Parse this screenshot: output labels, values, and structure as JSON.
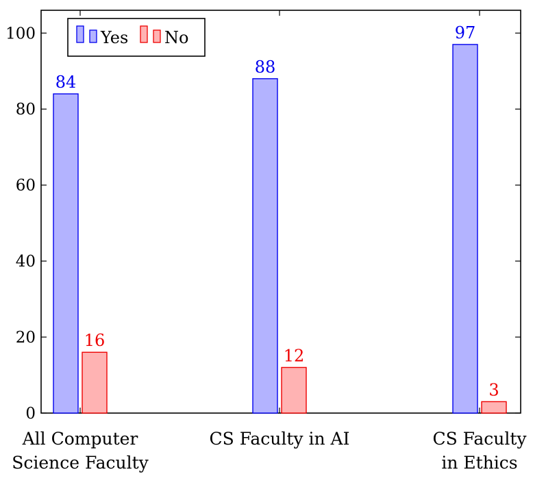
{
  "chart_data": {
    "type": "bar",
    "title": "",
    "xlabel": "",
    "ylabel": "",
    "categories": [
      [
        "All Computer",
        "Science Faculty"
      ],
      [
        "CS Faculty in AI"
      ],
      [
        "CS Faculty",
        "in Ethics"
      ]
    ],
    "series": [
      {
        "name": "Yes",
        "values": [
          84,
          88,
          97
        ],
        "fill": "#b3b3ff",
        "stroke": "#0000ee",
        "label_color": "#0000ee"
      },
      {
        "name": "No",
        "values": [
          16,
          12,
          3
        ],
        "fill": "#ffb3b3",
        "stroke": "#ee0000",
        "label_color": "#ee0000"
      }
    ],
    "ylim": [
      0,
      106
    ],
    "yticks": [
      0,
      20,
      40,
      60,
      80,
      100
    ],
    "grid": false,
    "legend_position": "top-left"
  }
}
